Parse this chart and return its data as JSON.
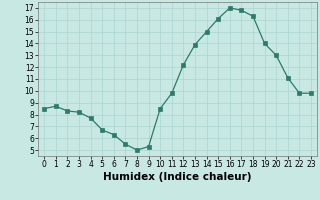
{
  "x": [
    0,
    1,
    2,
    3,
    4,
    5,
    6,
    7,
    8,
    9,
    10,
    11,
    12,
    13,
    14,
    15,
    16,
    17,
    18,
    19,
    20,
    21,
    22,
    23
  ],
  "y": [
    8.5,
    8.7,
    8.3,
    8.2,
    7.7,
    6.7,
    6.3,
    5.5,
    5.0,
    5.3,
    8.5,
    9.8,
    12.2,
    13.9,
    15.0,
    16.1,
    17.0,
    16.8,
    16.3,
    14.0,
    13.0,
    11.1,
    9.8,
    9.8
  ],
  "line_color": "#2d7b6a",
  "marker": "s",
  "marker_size": 2.5,
  "bg_color": "#c8e8e4",
  "grid_color": "#aad4d0",
  "xlabel": "Humidex (Indice chaleur)",
  "xlim": [
    -0.5,
    23.5
  ],
  "ylim": [
    4.5,
    17.5
  ],
  "yticks": [
    5,
    6,
    7,
    8,
    9,
    10,
    11,
    12,
    13,
    14,
    15,
    16,
    17
  ],
  "xticks": [
    0,
    1,
    2,
    3,
    4,
    5,
    6,
    7,
    8,
    9,
    10,
    11,
    12,
    13,
    14,
    15,
    16,
    17,
    18,
    19,
    20,
    21,
    22,
    23
  ],
  "tick_fontsize": 5.5,
  "label_fontsize": 7.5
}
